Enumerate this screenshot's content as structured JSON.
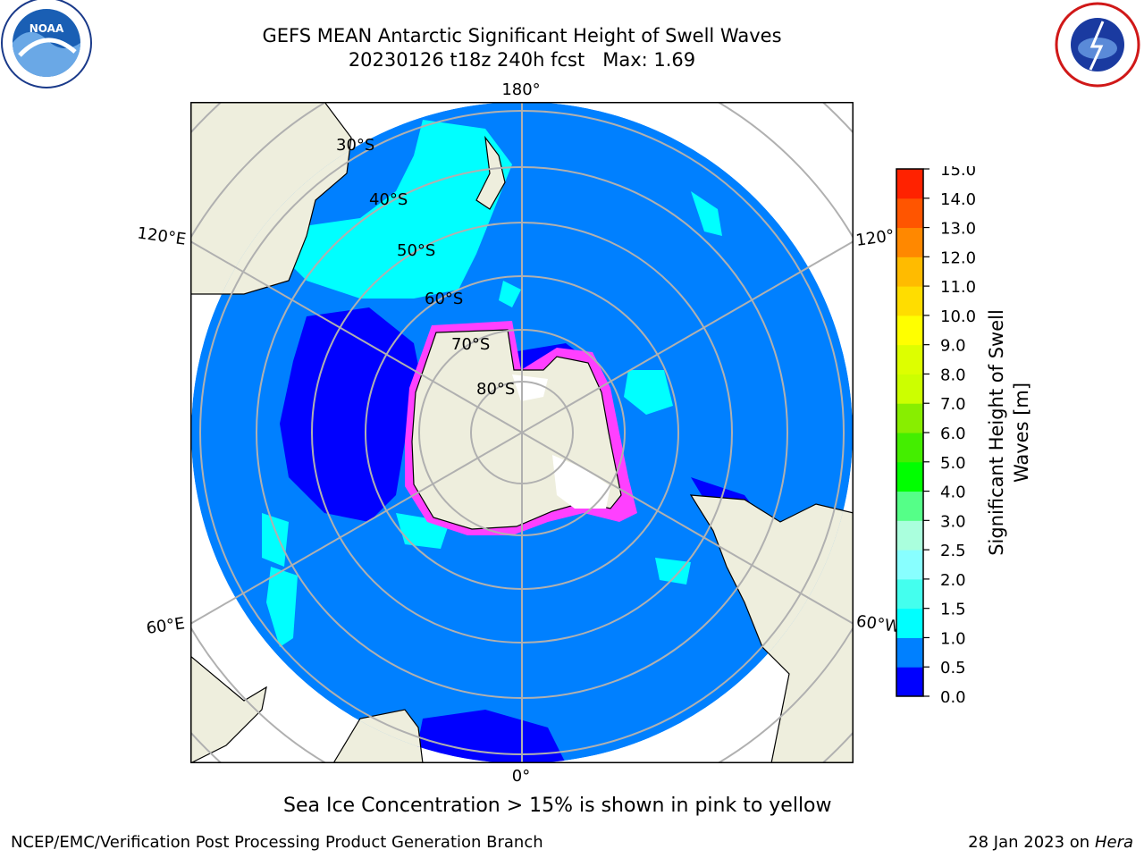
{
  "header": {
    "title_line1": "GEFS MEAN Antarctic Significant Height of Swell Waves",
    "title_line2": "20230126 t18z 240h fcst   Max: 1.69"
  },
  "logos": {
    "left": "NOAA",
    "right": "NATIONAL WEATHER SERVICE"
  },
  "map": {
    "projection": "south-polar-stereographic",
    "longitude_labels": [
      "180°",
      "120°E",
      "120°",
      "60°E",
      "60°W",
      "0°"
    ],
    "latitude_labels": [
      "30°S",
      "40°S",
      "50°S",
      "60°S",
      "70°S",
      "80°S"
    ],
    "colors": {
      "land": "#eeeedd",
      "ocean_main": "#0080ff",
      "ocean_low": "#0000ff",
      "ocean_mid": "#00ffff",
      "ice": "#ffffff",
      "ice_edge": "#ff40ff",
      "grid": "#b0b0b0"
    }
  },
  "colorbar": {
    "label_line1": "Significant Height of Swell",
    "label_line2": "Waves [m]",
    "ticks": [
      "0.0",
      "0.5",
      "1.0",
      "1.5",
      "2.0",
      "2.5",
      "3.0",
      "4.0",
      "5.0",
      "6.0",
      "7.0",
      "8.0",
      "9.0",
      "10.0",
      "11.0",
      "12.0",
      "13.0",
      "14.0",
      "15.0"
    ],
    "colors": [
      "#0000ff",
      "#0080ff",
      "#00ffff",
      "#44ffee",
      "#88ffff",
      "#aaffdd",
      "#55ff88",
      "#00ff00",
      "#44ee00",
      "#88ee00",
      "#ccff00",
      "#ddff00",
      "#ffff00",
      "#ffdd00",
      "#ffbb00",
      "#ff8800",
      "#ff5500",
      "#ff2200"
    ]
  },
  "caption": "Sea Ice Concentration > 15% is shown in pink to yellow",
  "footer": {
    "left": "NCEP/EMC/Verification Post Processing Product Generation Branch",
    "right_prefix": "28 Jan 2023 on ",
    "right_machine": "Hera"
  }
}
